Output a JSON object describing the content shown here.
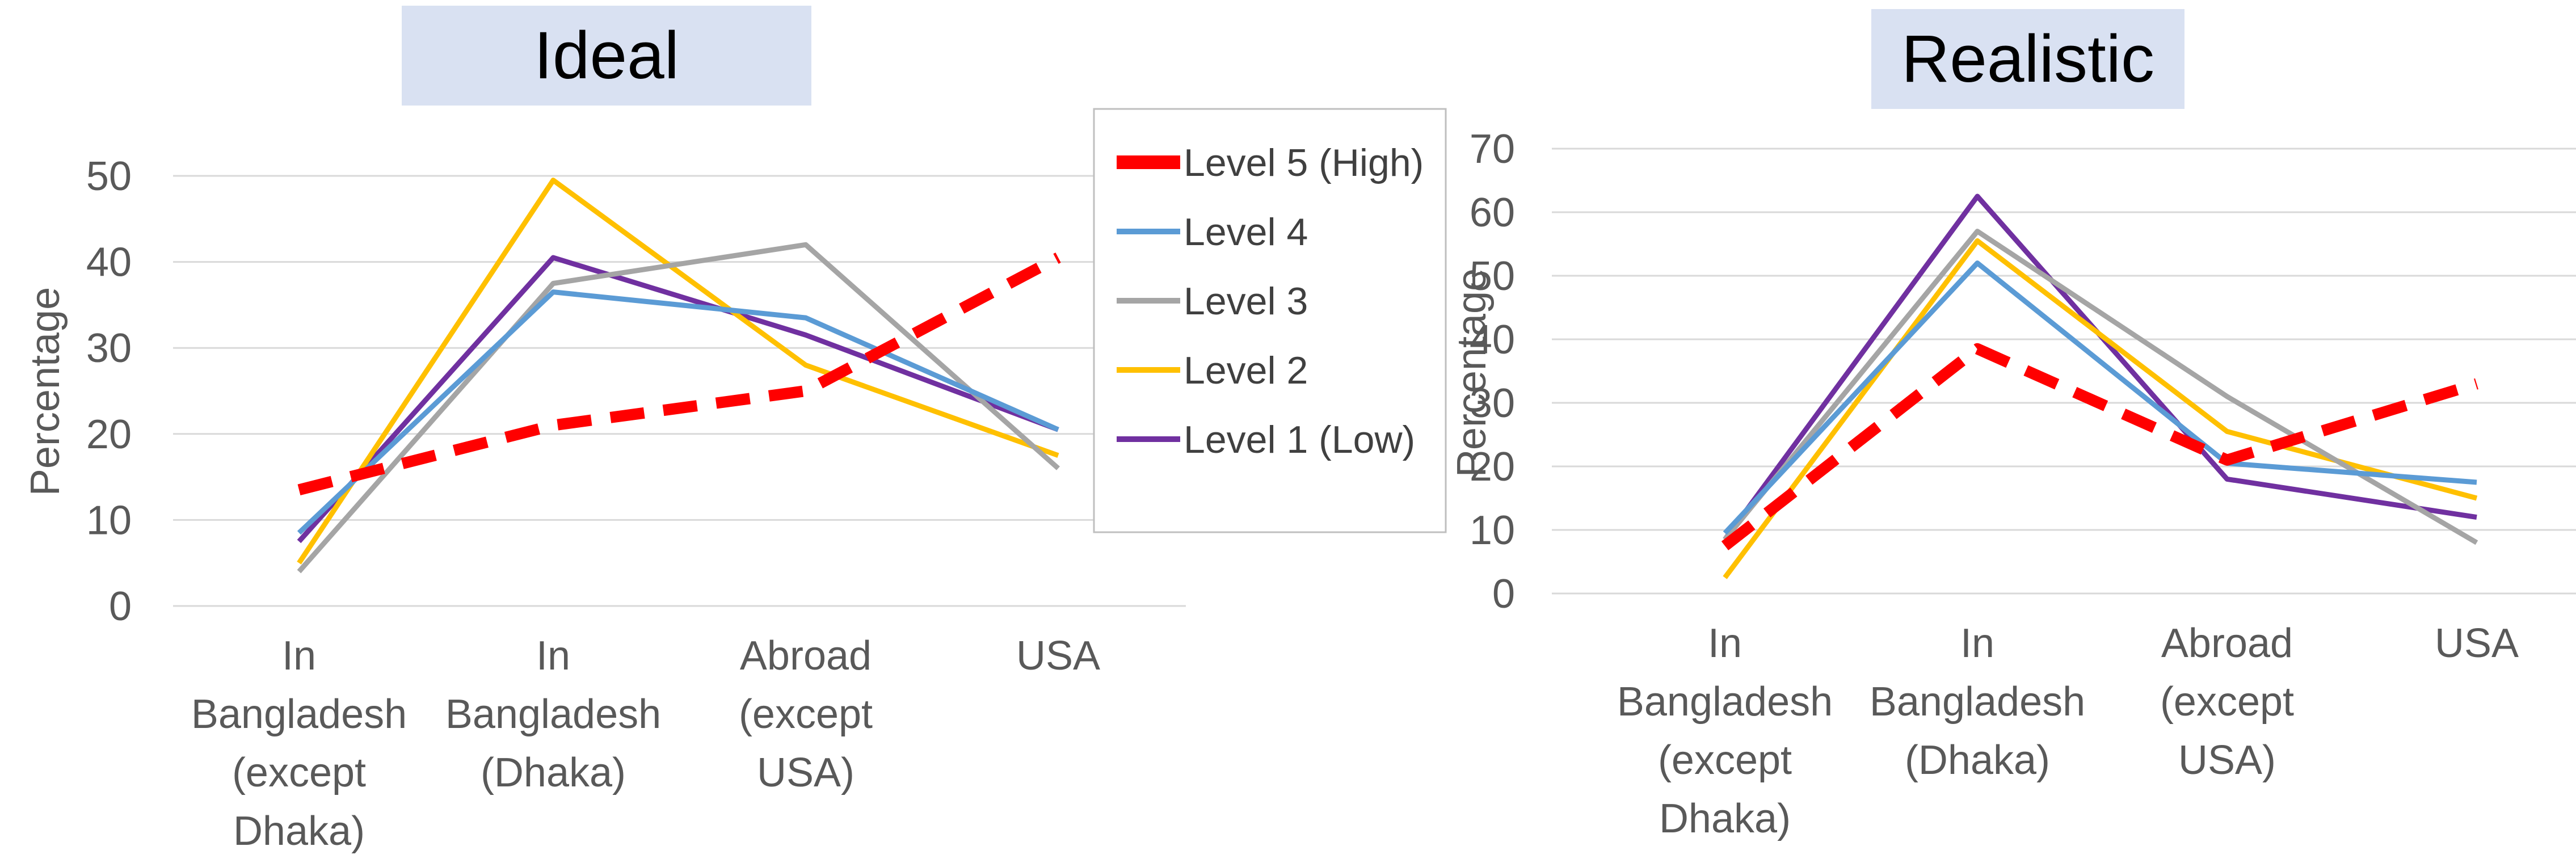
{
  "chart_data": [
    {
      "type": "line",
      "title": "Ideal",
      "ylabel": "Percentage",
      "xlabel": "",
      "ylim": [
        0,
        50
      ],
      "yticks": [
        0,
        10,
        20,
        30,
        40,
        50
      ],
      "grid": true,
      "categories": [
        [
          "In",
          "Bangladesh",
          "(except",
          "Dhaka)"
        ],
        [
          "In",
          "Bangladesh",
          "(Dhaka)"
        ],
        [
          "Abroad",
          "(except",
          "USA)"
        ],
        [
          "USA"
        ]
      ],
      "series": [
        {
          "name": "Level 5 (High)",
          "values": [
            13.5,
            21,
            25,
            40.5
          ],
          "color": "#ff0000",
          "dashed": true
        },
        {
          "name": "Level 4",
          "values": [
            8.5,
            36.5,
            33.5,
            20.5
          ],
          "color": "#5b9bd5",
          "dashed": false
        },
        {
          "name": "Level 3",
          "values": [
            4,
            37.5,
            42,
            16
          ],
          "color": "#a5a5a5",
          "dashed": false
        },
        {
          "name": "Level 2",
          "values": [
            5,
            49.5,
            28,
            17.5
          ],
          "color": "#ffc000",
          "dashed": false
        },
        {
          "name": "Level 1 (Low)",
          "values": [
            7.5,
            40.5,
            31.5,
            20.5
          ],
          "color": "#7030a0",
          "dashed": false
        }
      ],
      "legend": "right"
    },
    {
      "type": "line",
      "title": "Realistic",
      "ylabel": "Percentage",
      "xlabel": "",
      "ylim": [
        0,
        70
      ],
      "yticks": [
        0,
        10,
        20,
        30,
        40,
        50,
        60,
        70
      ],
      "grid": true,
      "categories": [
        [
          "In",
          "Bangladesh",
          "(except",
          "Dhaka)"
        ],
        [
          "In",
          "Bangladesh",
          "(Dhaka)"
        ],
        [
          "Abroad",
          "(except",
          "USA)"
        ],
        [
          "USA"
        ]
      ],
      "series": [
        {
          "name": "Level 5 (High)",
          "values": [
            7.5,
            38.5,
            21,
            33
          ],
          "color": "#ff0000",
          "dashed": true
        },
        {
          "name": "Level 4",
          "values": [
            9.5,
            52,
            20.5,
            17.5
          ],
          "color": "#5b9bd5",
          "dashed": false
        },
        {
          "name": "Level 3",
          "values": [
            8.5,
            57,
            31,
            8
          ],
          "color": "#a5a5a5",
          "dashed": false
        },
        {
          "name": "Level 2",
          "values": [
            2.5,
            55.5,
            25.5,
            15
          ],
          "color": "#ffc000",
          "dashed": false
        },
        {
          "name": "Level 1 (Low)",
          "values": [
            8.5,
            62.5,
            18,
            12
          ],
          "color": "#7030a0",
          "dashed": false
        }
      ]
    }
  ]
}
